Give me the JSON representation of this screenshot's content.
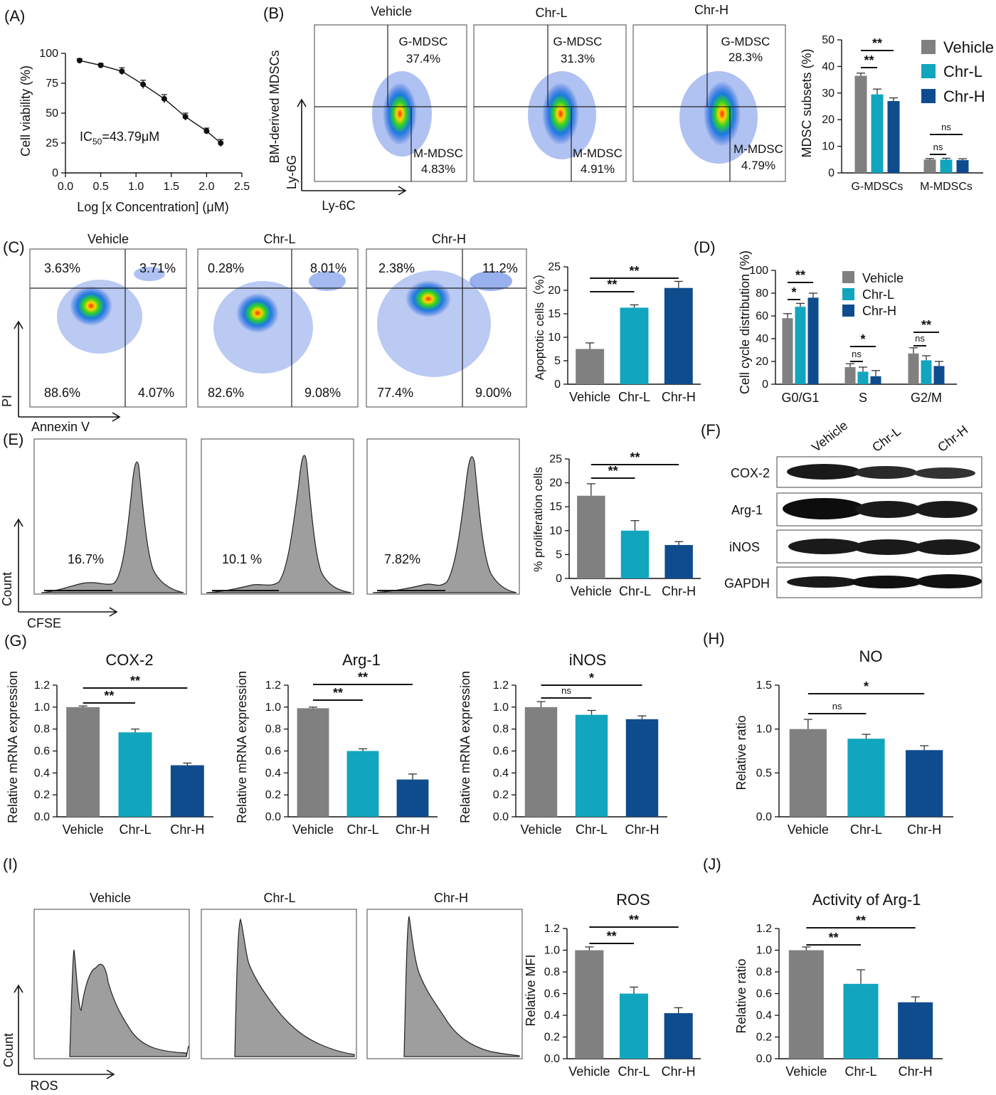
{
  "colors": {
    "vehicle": "#808080",
    "chr_l": "#12A5BE",
    "chr_h": "#0F4C8E"
  },
  "panel_letters": {
    "A": "(A)",
    "B": "(B)",
    "C": "(C)",
    "D": "(D)",
    "E": "(E)",
    "F": "(F)",
    "G": "(G)",
    "H": "(H)",
    "I": "(I)",
    "J": "(J)"
  },
  "groups": [
    "Vehicle",
    "Chr-L",
    "Chr-H"
  ],
  "panelA": {
    "xlabel": "Log [x Concentration] (μM)",
    "ylabel": "Cell viability (%)",
    "ic50_prefix": "IC",
    "ic50_sub": "50",
    "ic50_value": "=43.79μM",
    "xticks": [
      "0.0",
      "0.5",
      "1.0",
      "1.5",
      "2.0",
      "2.5"
    ],
    "yticks": [
      "0",
      "25",
      "50",
      "75",
      "100"
    ]
  },
  "panelB": {
    "titles": [
      "Vehicle",
      "Chr-L",
      "Chr-H"
    ],
    "gmdsc_label": "G-MDSC",
    "mmdsc_label": "M-MDSC",
    "gmdsc_values": [
      "37.4%",
      "31.3%",
      "28.3%"
    ],
    "mmdsc_values": [
      "4.83%",
      "4.91%",
      "4.79%"
    ],
    "ylabel_side": "BM-derived MDSCs",
    "yaxis": "Ly-6G",
    "xaxis": "Ly-6C",
    "bar_ylabel": "MDSC subsets (%)",
    "bar_categories": [
      "G-MDSCs",
      "M-MDSCs"
    ],
    "bar_yticks": [
      "0",
      "10",
      "20",
      "30",
      "40",
      "50"
    ],
    "sig": [
      "**",
      "**",
      "ns",
      "ns"
    ]
  },
  "panelC": {
    "titles": [
      "Vehicle",
      "Chr-L",
      "Chr-H"
    ],
    "upper_left": [
      "3.63%",
      "0.28%",
      "2.38%"
    ],
    "upper_right": [
      "3.71%",
      "8.01%",
      "11.2%"
    ],
    "lower_left": [
      "88.6%",
      "82.6%",
      "77.4%"
    ],
    "lower_right": [
      "4.07%",
      "9.08%",
      "9.00%"
    ],
    "yaxis": "PI",
    "xaxis": "Annexin V",
    "bar_ylabel": "Apoptotic cells（%）",
    "bar_yticks": [
      "0",
      "5",
      "10",
      "15",
      "20",
      "25"
    ],
    "sig": [
      "**",
      "**"
    ]
  },
  "panelD": {
    "ylabel": "Cell cycle distribution (%)",
    "categories": [
      "G0/G1",
      "S",
      "G2/M"
    ],
    "yticks": [
      "0",
      "20",
      "40",
      "60",
      "80",
      "100"
    ],
    "sig": [
      "*",
      "**",
      "ns",
      "*",
      "ns",
      "**"
    ]
  },
  "panelE": {
    "percents": [
      "16.7%",
      "10.1 %",
      "7.82%"
    ],
    "yaxis": "Count",
    "xaxis": "CFSE",
    "bar_ylabel": "% proliferation cells",
    "bar_yticks": [
      "0",
      "5",
      "10",
      "15",
      "20",
      "25"
    ],
    "sig": [
      "**",
      "**"
    ]
  },
  "panelF": {
    "lanes": [
      "Vehicle",
      "Chr-L",
      "Chr-H"
    ],
    "proteins": [
      "COX-2",
      "Arg-1",
      "iNOS",
      "GAPDH"
    ]
  },
  "panelG": {
    "titles": [
      "COX-2",
      "Arg-1",
      "iNOS"
    ],
    "ylabel": "Relative mRNA expression",
    "yticks": [
      "0.0",
      "0.2",
      "0.4",
      "0.6",
      "0.8",
      "1.0",
      "1.2"
    ],
    "sig": [
      [
        "**",
        "**"
      ],
      [
        "**",
        "**"
      ],
      [
        "ns",
        "*"
      ]
    ]
  },
  "panelH": {
    "title": "NO",
    "ylabel": "Relative ratio",
    "yticks": [
      "0.0",
      "0.5",
      "1.0",
      "1.5"
    ],
    "sig": [
      "ns",
      "*"
    ]
  },
  "panelI": {
    "titles": [
      "Vehicle",
      "Chr-L",
      "Chr-H"
    ],
    "yaxis": "Count",
    "xaxis": "ROS",
    "bar_title": "ROS",
    "bar_ylabel": "Relative MFI",
    "bar_yticks": [
      "0.0",
      "0.2",
      "0.4",
      "0.6",
      "0.8",
      "1.0",
      "1.2"
    ],
    "sig": [
      "**",
      "**"
    ]
  },
  "panelJ": {
    "title": "Activity of Arg-1",
    "ylabel": "Relative ratio",
    "yticks": [
      "0.0",
      "0.2",
      "0.4",
      "0.6",
      "0.8",
      "1.0",
      "1.2"
    ],
    "sig": [
      "**",
      "**"
    ]
  },
  "chart_data": [
    {
      "id": "A",
      "type": "line",
      "title": "",
      "xlabel": "Log [x Concentration] (μM)",
      "ylabel": "Cell viability (%)",
      "xlim": [
        0,
        2.5
      ],
      "ylim": [
        0,
        100
      ],
      "x": [
        0.2,
        0.5,
        0.8,
        1.1,
        1.4,
        1.7,
        2.0,
        2.2
      ],
      "y": [
        94,
        90,
        85,
        74,
        62,
        47,
        35,
        25
      ],
      "err": [
        1.5,
        1.5,
        3,
        3.5,
        3.5,
        3,
        2.5,
        3
      ]
    },
    {
      "id": "B",
      "type": "bar",
      "ylabel": "MDSC subsets (%)",
      "ylim": [
        0,
        50
      ],
      "categories": [
        "G-MDSCs",
        "M-MDSCs"
      ],
      "series": [
        {
          "name": "Vehicle",
          "values": [
            36.5,
            5.0
          ],
          "err": [
            1.0,
            0.4
          ]
        },
        {
          "name": "Chr-L",
          "values": [
            29.5,
            5.0
          ],
          "err": [
            2.0,
            0.5
          ]
        },
        {
          "name": "Chr-H",
          "values": [
            27.0,
            4.8
          ],
          "err": [
            1.2,
            0.5
          ]
        }
      ]
    },
    {
      "id": "C",
      "type": "bar",
      "ylabel": "Apoptotic cells（%）",
      "ylim": [
        0,
        25
      ],
      "categories": [
        "Vehicle",
        "Chr-L",
        "Chr-H"
      ],
      "values": [
        7.5,
        16.3,
        20.5
      ],
      "err": [
        1.3,
        0.6,
        1.4
      ]
    },
    {
      "id": "D",
      "type": "bar",
      "ylabel": "Cell cycle distribution (%)",
      "ylim": [
        0,
        100
      ],
      "categories": [
        "G0/G1",
        "S",
        "G2/M"
      ],
      "series": [
        {
          "name": "Vehicle",
          "values": [
            58,
            15,
            27
          ],
          "err": [
            4,
            3,
            5
          ]
        },
        {
          "name": "Chr-L",
          "values": [
            68,
            11,
            21
          ],
          "err": [
            3,
            4,
            4
          ]
        },
        {
          "name": "Chr-H",
          "values": [
            76,
            7,
            16
          ],
          "err": [
            4,
            5,
            4
          ]
        }
      ]
    },
    {
      "id": "E",
      "type": "bar",
      "ylabel": "% proliferation cells",
      "ylim": [
        0,
        25
      ],
      "categories": [
        "Vehicle",
        "Chr-L",
        "Chr-H"
      ],
      "values": [
        17.3,
        10.0,
        7.0
      ],
      "err": [
        2.5,
        2.1,
        0.7
      ]
    },
    {
      "id": "G1",
      "type": "bar",
      "title": "COX-2",
      "ylabel": "Relative mRNA expression",
      "ylim": [
        0,
        1.2
      ],
      "categories": [
        "Vehicle",
        "Chr-L",
        "Chr-H"
      ],
      "values": [
        1.0,
        0.77,
        0.47
      ],
      "err": [
        0.01,
        0.03,
        0.02
      ]
    },
    {
      "id": "G2",
      "type": "bar",
      "title": "Arg-1",
      "ylabel": "Relative mRNA expression",
      "ylim": [
        0,
        1.2
      ],
      "categories": [
        "Vehicle",
        "Chr-L",
        "Chr-H"
      ],
      "values": [
        0.99,
        0.6,
        0.34
      ],
      "err": [
        0.01,
        0.02,
        0.05
      ]
    },
    {
      "id": "G3",
      "type": "bar",
      "title": "iNOS",
      "ylabel": "Relative mRNA expression",
      "ylim": [
        0,
        1.2
      ],
      "categories": [
        "Vehicle",
        "Chr-L",
        "Chr-H"
      ],
      "values": [
        1.0,
        0.93,
        0.89
      ],
      "err": [
        0.05,
        0.04,
        0.03
      ]
    },
    {
      "id": "H",
      "type": "bar",
      "title": "NO",
      "ylabel": "Relative ratio",
      "ylim": [
        0,
        1.5
      ],
      "categories": [
        "Vehicle",
        "Chr-L",
        "Chr-H"
      ],
      "values": [
        1.0,
        0.89,
        0.76
      ],
      "err": [
        0.11,
        0.05,
        0.05
      ]
    },
    {
      "id": "I",
      "type": "bar",
      "title": "ROS",
      "ylabel": "Relative MFI",
      "ylim": [
        0,
        1.2
      ],
      "categories": [
        "Vehicle",
        "Chr-L",
        "Chr-H"
      ],
      "values": [
        1.0,
        0.6,
        0.42
      ],
      "err": [
        0.03,
        0.06,
        0.05
      ]
    },
    {
      "id": "J",
      "type": "bar",
      "title": "Activity of Arg-1",
      "ylabel": "Relative ratio",
      "ylim": [
        0,
        1.2
      ],
      "categories": [
        "Vehicle",
        "Chr-L",
        "Chr-H"
      ],
      "values": [
        1.0,
        0.69,
        0.52
      ],
      "err": [
        0.03,
        0.13,
        0.05
      ]
    }
  ]
}
